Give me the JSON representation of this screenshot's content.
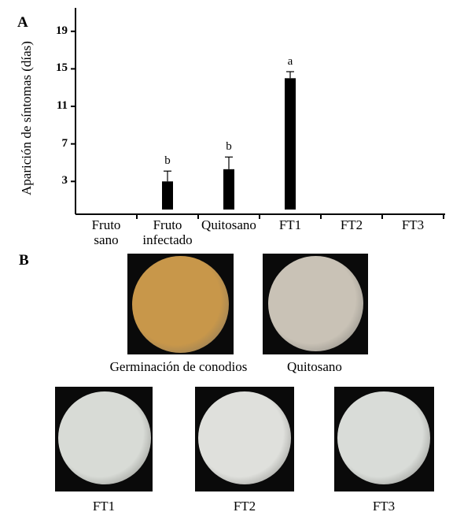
{
  "panels": {
    "a": "A",
    "b": "B"
  },
  "chart_data": {
    "type": "bar",
    "ylabel": "Aparición de síntomas (días)",
    "yticks": [
      "3",
      "7",
      "11",
      "15",
      "19"
    ],
    "ylim": [
      -0.5,
      21.5
    ],
    "categories": [
      "Fruto\nsano",
      "Fruto\ninfectado",
      "Quitosano",
      "FT1",
      "FT2",
      "FT3"
    ],
    "values": [
      0,
      3,
      4.3,
      14,
      0,
      0
    ],
    "errors": [
      0,
      1.1,
      1.3,
      0.7,
      0,
      0
    ],
    "significance": [
      "",
      "b",
      "b",
      "a",
      "",
      ""
    ],
    "bar_color": "#000000",
    "grid": false
  },
  "micrographs": {
    "germinacion": {
      "label": "Germinación de conodios",
      "tint": "#c8974a"
    },
    "quitosano": {
      "label": "Quitosano",
      "tint": "#c9c2b6"
    },
    "ft1": {
      "label": "FT1",
      "tint": "#d8dbd6"
    },
    "ft2": {
      "label": "FT2",
      "tint": "#dfe0dc"
    },
    "ft3": {
      "label": "FT3",
      "tint": "#d9dcd8"
    }
  }
}
